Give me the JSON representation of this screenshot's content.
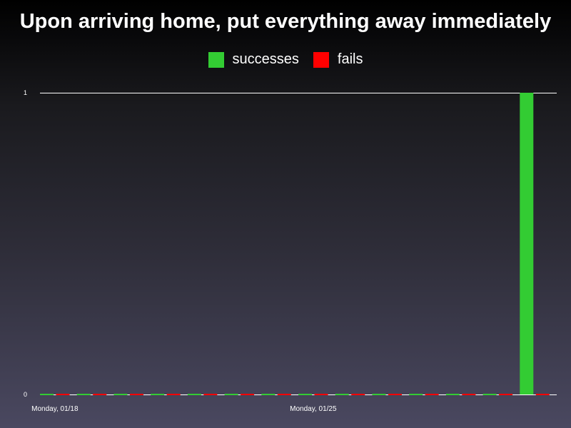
{
  "chart_data": {
    "type": "bar",
    "title": "Upon arriving home, put everything away immediately",
    "xlabel": "",
    "ylabel": "",
    "ylim": [
      0,
      1
    ],
    "y_ticks": [
      "0",
      "1"
    ],
    "legend_position": "top",
    "categories": [
      "1",
      "2",
      "3",
      "4",
      "5",
      "6",
      "7",
      "8",
      "9",
      "10",
      "11",
      "12",
      "13",
      "14"
    ],
    "x_tick_labels": [
      {
        "index": 0,
        "label": "Monday, 01/18"
      },
      {
        "index": 7,
        "label": "Monday, 01/25"
      }
    ],
    "series": [
      {
        "name": "successes",
        "color": "#33cc33",
        "values": [
          0,
          0,
          0,
          0,
          0,
          0,
          0,
          0,
          0,
          0,
          0,
          0,
          0,
          1
        ]
      },
      {
        "name": "fails",
        "color": "#ff0000",
        "values": [
          0,
          0,
          0,
          0,
          0,
          0,
          0,
          0,
          0,
          0,
          0,
          0,
          0,
          0
        ]
      }
    ],
    "grid": false
  }
}
